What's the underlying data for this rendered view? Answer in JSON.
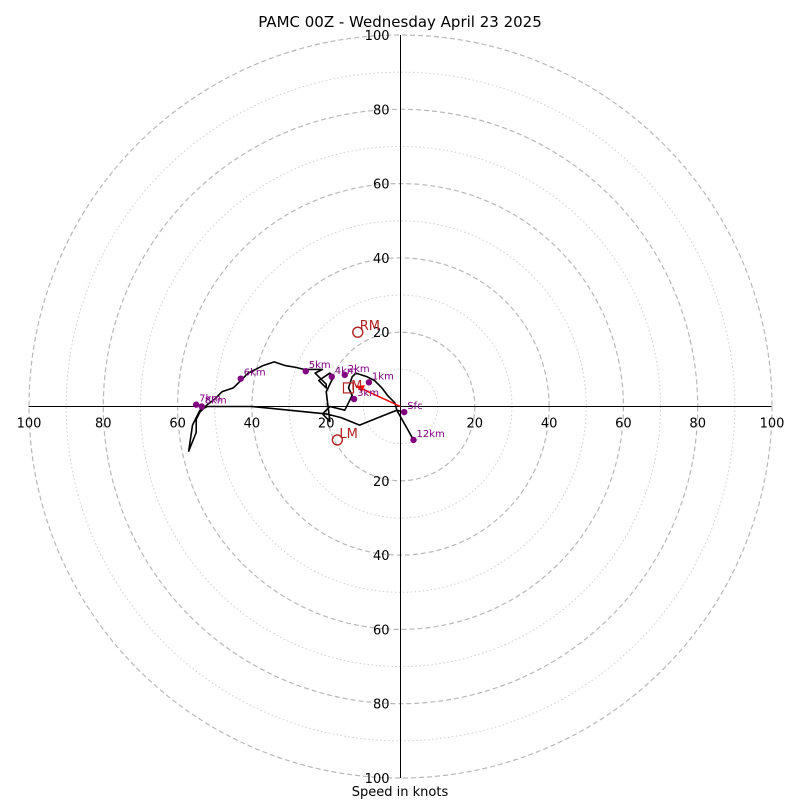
{
  "chart_data": {
    "type": "line",
    "title": "PAMC 00Z - Wednesday April 23 2025",
    "xlabel": "Speed in knots",
    "ylabel": "",
    "xlim": [
      -100,
      100
    ],
    "ylim": [
      -100,
      100
    ],
    "rings": [
      10,
      20,
      30,
      40,
      50,
      60,
      70,
      80,
      90,
      100
    ],
    "major_rings": [
      20,
      40,
      60,
      80,
      100
    ],
    "tick_values": [
      20,
      40,
      60,
      80,
      100
    ],
    "x_tick_labels": [
      {
        "v": -100,
        "label": "100"
      },
      {
        "v": -80,
        "label": "80"
      },
      {
        "v": -60,
        "label": "60"
      },
      {
        "v": -40,
        "label": "40"
      },
      {
        "v": -20,
        "label": "20"
      },
      {
        "v": 20,
        "label": "20"
      },
      {
        "v": 40,
        "label": "40"
      },
      {
        "v": 60,
        "label": "60"
      },
      {
        "v": 80,
        "label": "80"
      },
      {
        "v": 100,
        "label": "100"
      }
    ],
    "y_tick_labels": [
      {
        "v": 100,
        "label": "100"
      },
      {
        "v": 80,
        "label": "80"
      },
      {
        "v": 60,
        "label": "60"
      },
      {
        "v": 40,
        "label": "40"
      },
      {
        "v": 20,
        "label": "20"
      },
      {
        "v": -20,
        "label": "20"
      },
      {
        "v": -40,
        "label": "40"
      },
      {
        "v": -60,
        "label": "60"
      },
      {
        "v": -80,
        "label": "80"
      },
      {
        "v": -100,
        "label": "100"
      }
    ],
    "hodograph": {
      "color": "#000000",
      "u": [
        1,
        -1,
        -1.5,
        -3.5,
        -5,
        -7,
        -9,
        -12,
        -13,
        -14,
        -13,
        -14,
        -15,
        -19,
        -21,
        -19,
        -20,
        -18,
        -19,
        -22,
        -20,
        -20,
        -23,
        -21,
        -24,
        -26,
        -28,
        -31,
        -34,
        -37,
        -39,
        -41,
        -43,
        -45,
        -48,
        -50,
        -52,
        -53,
        -54,
        -55,
        -55,
        -57,
        -56,
        -54,
        -52,
        -50,
        -40,
        -30,
        -20,
        -16,
        -11,
        -6,
        -1,
        3.5
      ],
      "v": [
        -1.5,
        -1,
        1,
        3,
        5,
        7,
        8,
        9,
        8,
        5,
        3,
        1,
        -1,
        0,
        -2,
        -4,
        4,
        8,
        9,
        7,
        5,
        6,
        9,
        10,
        10,
        10,
        10.5,
        11,
        12,
        11,
        10,
        9,
        7,
        5,
        4,
        2,
        0.5,
        -0.5,
        -1.5,
        -3.5,
        -7,
        -12,
        -5,
        -1,
        0,
        0,
        0,
        -1,
        -2,
        -3,
        -5,
        -3,
        -1,
        -9
      ]
    },
    "height_points": [
      {
        "label": "Sfc",
        "u": 1,
        "v": -1.5
      },
      {
        "label": "1km",
        "u": -8.5,
        "v": 6.5
      },
      {
        "label": "2km",
        "u": -15,
        "v": 8.5
      },
      {
        "label": "3km",
        "u": -12.5,
        "v": 2
      },
      {
        "label": "4km",
        "u": -18.5,
        "v": 8
      },
      {
        "label": "5km",
        "u": -25.5,
        "v": 9.5
      },
      {
        "label": "6km",
        "u": -43,
        "v": 7.5
      },
      {
        "label": "7km",
        "u": -55,
        "v": 0.5
      },
      {
        "label": "8km",
        "u": -53.5,
        "v": 0
      },
      {
        "label": "12km",
        "u": 3.5,
        "v": -9
      }
    ],
    "motion_points": [
      {
        "label": "RM",
        "u": -11.5,
        "v": 20,
        "color": "#b22222"
      },
      {
        "label": "LM",
        "u": -17,
        "v": -9,
        "color": "#b22222"
      },
      {
        "label": "M",
        "u": -12.5,
        "v": 5.5,
        "color": "#b22222"
      }
    ],
    "mean_wind_box": {
      "u": -14,
      "v": 5
    },
    "shear_vector": {
      "from_u": 0,
      "from_v": 0,
      "to_u": -12,
      "to_v": 5.5,
      "color": "#ff0000"
    },
    "point_color": "#800080"
  }
}
